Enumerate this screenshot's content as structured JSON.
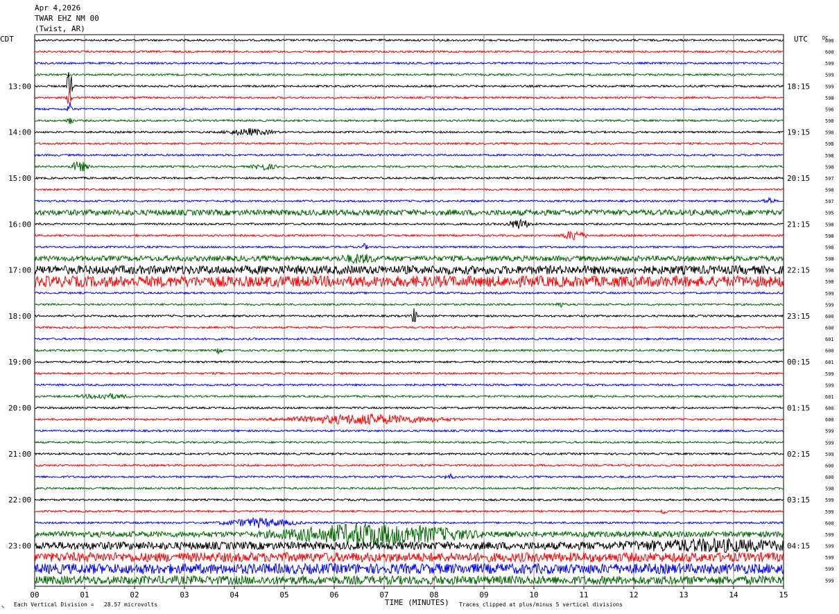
{
  "chart_data": {
    "type": "line",
    "header": {
      "date": "Apr 4,2026",
      "station": "TWAR EHZ NM 00",
      "location": "(Twist, AR)"
    },
    "left_timezone": "CDT",
    "right_timezone": "UTC",
    "dc_header": "DC",
    "left_hour_labels": [
      "13:00",
      "14:00",
      "15:00",
      "16:00",
      "17:00",
      "18:00",
      "19:00",
      "20:00",
      "21:00",
      "22:00",
      "23:00"
    ],
    "right_hour_labels": [
      "18:15",
      "19:15",
      "20:15",
      "21:15",
      "22:15",
      "23:15",
      "00:15",
      "01:15",
      "02:15",
      "03:15",
      "04:15"
    ],
    "label_first_row": 4,
    "rows_per_hour": 4,
    "row_count": 48,
    "x_ticks": [
      "00",
      "01",
      "02",
      "03",
      "04",
      "05",
      "06",
      "07",
      "08",
      "09",
      "10",
      "11",
      "12",
      "13",
      "14",
      "15"
    ],
    "xlabel": "TIME (MINUTES)",
    "xlim": [
      0,
      15
    ],
    "grid": true,
    "trace_colors": [
      "#000000",
      "#ff0000",
      "#0000ff",
      "#006400"
    ],
    "dc_values": [
      600,
      600,
      599,
      599,
      599,
      598,
      596,
      598,
      598,
      598,
      598,
      598,
      597,
      598,
      597,
      595,
      598,
      598,
      598,
      598,
      598,
      598,
      599,
      599,
      600,
      600,
      601,
      600,
      601,
      599,
      599,
      601,
      600,
      600,
      599,
      599,
      599,
      600,
      600,
      598,
      599,
      599,
      600,
      599,
      599,
      599,
      599,
      599
    ],
    "events": [
      {
        "row": 4,
        "minute": 0.7,
        "amplitude": 3.2,
        "duration": 0.05
      },
      {
        "row": 5,
        "minute": 0.7,
        "amplitude": 1.5,
        "duration": 0.05
      },
      {
        "row": 6,
        "minute": 0.7,
        "amplitude": 1.2,
        "duration": 0.05
      },
      {
        "row": 7,
        "minute": 0.7,
        "amplitude": 0.9,
        "duration": 0.05
      },
      {
        "row": 8,
        "minute": 4.3,
        "amplitude": 0.5,
        "duration": 0.4
      },
      {
        "row": 11,
        "minute": 0.9,
        "amplitude": 0.9,
        "duration": 0.15
      },
      {
        "row": 11,
        "minute": 4.6,
        "amplitude": 0.5,
        "duration": 0.2
      },
      {
        "row": 14,
        "minute": 14.7,
        "amplitude": 0.5,
        "duration": 0.1
      },
      {
        "row": 16,
        "minute": 9.7,
        "amplitude": 0.8,
        "duration": 0.2
      },
      {
        "row": 17,
        "minute": 10.8,
        "amplitude": 0.8,
        "duration": 0.2
      },
      {
        "row": 18,
        "minute": 6.6,
        "amplitude": 0.5,
        "duration": 0.05
      },
      {
        "row": 19,
        "minute": 6.5,
        "amplitude": 0.5,
        "duration": 0.3
      },
      {
        "row": 23,
        "minute": 10.5,
        "amplitude": 0.4,
        "duration": 0.1
      },
      {
        "row": 24,
        "minute": 7.6,
        "amplitude": 1.3,
        "duration": 0.05
      },
      {
        "row": 27,
        "minute": 3.7,
        "amplitude": 0.5,
        "duration": 0.05
      },
      {
        "row": 31,
        "minute": 1.4,
        "amplitude": 0.4,
        "duration": 0.4
      },
      {
        "row": 33,
        "minute": 6.6,
        "amplitude": 0.8,
        "duration": 1.3
      },
      {
        "row": 38,
        "minute": 8.3,
        "amplitude": 0.4,
        "duration": 0.1
      },
      {
        "row": 41,
        "minute": 12.6,
        "amplitude": 0.5,
        "duration": 0.05
      },
      {
        "row": 42,
        "minute": 4.5,
        "amplitude": 0.7,
        "duration": 0.6
      },
      {
        "row": 43,
        "minute": 6.8,
        "amplitude": 1.6,
        "duration": 1.5
      },
      {
        "row": 44,
        "minute": 13.6,
        "amplitude": 0.6,
        "duration": 1.4
      }
    ],
    "noisy_rows": [
      {
        "row": 15,
        "level": 0.45
      },
      {
        "row": 19,
        "level": 0.4
      },
      {
        "row": 20,
        "level": 0.8
      },
      {
        "row": 21,
        "level": 1.1
      },
      {
        "row": 43,
        "level": 0.45
      },
      {
        "row": 44,
        "level": 0.7
      },
      {
        "row": 45,
        "level": 0.9
      },
      {
        "row": 46,
        "level": 1.0
      },
      {
        "row": 47,
        "level": 0.8
      }
    ],
    "footer_left": "Each Vertical Division =   28.57 microvolts",
    "footer_right": "Traces clipped at plus/minus 5 vertical divisions"
  }
}
